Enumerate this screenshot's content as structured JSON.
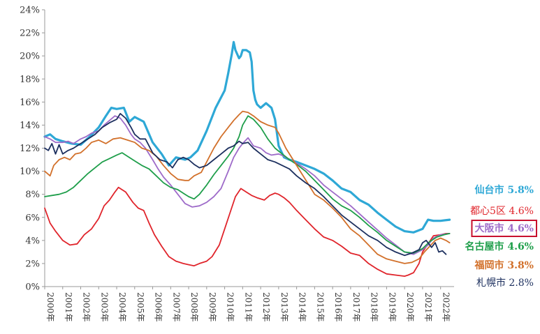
{
  "chart_data": {
    "type": "line",
    "title": "",
    "xlabel": "",
    "ylabel": "",
    "ylim": [
      0,
      24
    ],
    "y_ticks": [
      0,
      2,
      4,
      6,
      8,
      10,
      12,
      14,
      16,
      18,
      20,
      22,
      24
    ],
    "y_tick_suffix": "%",
    "x_range": [
      2000.0,
      2022.75
    ],
    "x_ticks": [
      {
        "value": 2000,
        "label": "2000年"
      },
      {
        "value": 2001,
        "label": "2001年"
      },
      {
        "value": 2002,
        "label": "2002年"
      },
      {
        "value": 2003,
        "label": "2003年"
      },
      {
        "value": 2004,
        "label": "2004年"
      },
      {
        "value": 2005,
        "label": "2005年"
      },
      {
        "value": 2006,
        "label": "2006年"
      },
      {
        "value": 2007,
        "label": "2007年"
      },
      {
        "value": 2008,
        "label": "2008年"
      },
      {
        "value": 2009,
        "label": "2009年"
      },
      {
        "value": 2010,
        "label": "2010年"
      },
      {
        "value": 2011,
        "label": "2011年"
      },
      {
        "value": 2012,
        "label": "2012年"
      },
      {
        "value": 2013,
        "label": "2013年"
      },
      {
        "value": 2014,
        "label": "2014年"
      },
      {
        "value": 2015,
        "label": "2015年"
      },
      {
        "value": 2016,
        "label": "2016年"
      },
      {
        "value": 2017,
        "label": "2017年"
      },
      {
        "value": 2018,
        "label": "2018年"
      },
      {
        "value": 2019,
        "label": "2019年"
      },
      {
        "value": 2020,
        "label": "2020年"
      },
      {
        "value": 2021,
        "label": "2021年"
      },
      {
        "value": 2022,
        "label": "2022年"
      }
    ],
    "grid": false,
    "legend_position": "right",
    "series": [
      {
        "name": "仙台市",
        "legend_label": "仙台市 5.8%",
        "final_value": "5.8%",
        "color": "#2EA8D6",
        "width": 3.2,
        "bold": true,
        "boxed": false,
        "x": [
          2000.0,
          2000.3,
          2000.6,
          2001.0,
          2001.5,
          2002.0,
          2002.5,
          2003.0,
          2003.4,
          2003.7,
          2004.0,
          2004.4,
          2004.7,
          2005.0,
          2005.5,
          2006.0,
          2006.5,
          2006.9,
          2007.3,
          2007.8,
          2008.1,
          2008.5,
          2009.0,
          2009.5,
          2010.0,
          2010.2,
          2010.4,
          2010.5,
          2010.6,
          2010.8,
          2010.9,
          2011.0,
          2011.2,
          2011.4,
          2011.5,
          2011.6,
          2011.7,
          2011.8,
          2012.0,
          2012.3,
          2012.6,
          2012.8,
          2013.0,
          2013.3,
          2013.6,
          2014.0,
          2014.5,
          2015.0,
          2015.5,
          2016.0,
          2016.5,
          2017.0,
          2017.5,
          2018.0,
          2018.5,
          2019.0,
          2019.5,
          2020.0,
          2020.5,
          2021.0,
          2021.3,
          2021.6,
          2022.0,
          2022.5
        ],
        "values": [
          13.0,
          13.2,
          12.8,
          12.6,
          12.4,
          12.3,
          13.0,
          13.8,
          14.8,
          15.5,
          15.4,
          15.5,
          14.3,
          14.7,
          14.3,
          12.5,
          11.5,
          10.5,
          11.2,
          11.0,
          11.2,
          11.8,
          13.5,
          15.5,
          17.0,
          18.5,
          20.2,
          21.2,
          20.5,
          19.8,
          20.0,
          20.5,
          20.5,
          20.3,
          19.5,
          17.0,
          16.2,
          15.8,
          15.5,
          15.9,
          15.5,
          14.5,
          12.2,
          11.2,
          11.0,
          10.8,
          10.5,
          10.2,
          9.8,
          9.2,
          8.5,
          8.2,
          7.5,
          7.1,
          6.4,
          5.8,
          5.2,
          4.8,
          4.7,
          5.0,
          5.8,
          5.7,
          5.7,
          5.8
        ]
      },
      {
        "name": "都心5区",
        "legend_label": "都心5区 4.6%",
        "final_value": "4.6%",
        "color": "#E0242B",
        "width": 1.8,
        "bold": false,
        "boxed": false,
        "x": [
          2000.0,
          2000.3,
          2000.6,
          2001.0,
          2001.4,
          2001.8,
          2002.2,
          2002.6,
          2003.0,
          2003.3,
          2003.6,
          2003.9,
          2004.1,
          2004.5,
          2004.9,
          2005.2,
          2005.5,
          2005.8,
          2006.1,
          2006.5,
          2006.9,
          2007.3,
          2007.7,
          2008.0,
          2008.3,
          2008.6,
          2009.0,
          2009.3,
          2009.7,
          2010.0,
          2010.3,
          2010.6,
          2010.9,
          2011.2,
          2011.5,
          2011.8,
          2012.2,
          2012.5,
          2012.8,
          2013.0,
          2013.3,
          2013.6,
          2014.0,
          2014.5,
          2015.0,
          2015.5,
          2016.0,
          2016.5,
          2017.0,
          2017.5,
          2018.0,
          2018.5,
          2019.0,
          2019.5,
          2020.0,
          2020.2,
          2020.5,
          2020.8,
          2021.0,
          2021.3,
          2021.6,
          2022.0,
          2022.3,
          2022.5
        ],
        "values": [
          6.8,
          5.5,
          4.8,
          4.0,
          3.6,
          3.7,
          4.5,
          5.0,
          5.9,
          7.0,
          7.5,
          8.2,
          8.6,
          8.2,
          7.3,
          6.8,
          6.6,
          5.5,
          4.5,
          3.5,
          2.6,
          2.2,
          2.0,
          1.9,
          1.8,
          2.0,
          2.2,
          2.6,
          3.6,
          5.0,
          6.4,
          7.8,
          8.5,
          8.2,
          7.9,
          7.7,
          7.5,
          7.9,
          8.1,
          8.0,
          7.7,
          7.3,
          6.6,
          5.8,
          5.0,
          4.3,
          4.0,
          3.5,
          2.9,
          2.7,
          2.0,
          1.5,
          1.1,
          1.0,
          0.9,
          1.0,
          1.2,
          2.0,
          3.0,
          3.7,
          4.4,
          4.5,
          4.6,
          4.6
        ]
      },
      {
        "name": "大阪市",
        "legend_label": "大阪市 4.6%",
        "final_value": "4.6%",
        "color": "#9E6BC9",
        "width": 1.8,
        "bold": true,
        "boxed": true,
        "x": [
          2000.0,
          2000.3,
          2000.6,
          2001.0,
          2001.3,
          2001.6,
          2002.0,
          2002.3,
          2002.6,
          2003.0,
          2003.3,
          2003.6,
          2003.9,
          2004.2,
          2004.5,
          2004.8,
          2005.0,
          2005.3,
          2005.6,
          2006.0,
          2006.3,
          2006.6,
          2007.0,
          2007.4,
          2007.8,
          2008.2,
          2008.6,
          2009.0,
          2009.4,
          2009.8,
          2010.2,
          2010.5,
          2010.8,
          2011.0,
          2011.3,
          2011.6,
          2012.0,
          2012.3,
          2012.6,
          2013.0,
          2013.3,
          2013.6,
          2014.0,
          2014.5,
          2015.0,
          2015.5,
          2016.0,
          2016.5,
          2017.0,
          2017.5,
          2018.0,
          2018.5,
          2019.0,
          2019.5,
          2020.0,
          2020.5,
          2021.0,
          2021.3,
          2021.6,
          2022.0,
          2022.5
        ],
        "values": [
          13.0,
          12.8,
          12.5,
          12.5,
          12.6,
          12.4,
          12.8,
          13.0,
          13.3,
          13.5,
          14.0,
          14.4,
          14.8,
          14.6,
          14.0,
          13.2,
          12.8,
          12.5,
          12.0,
          11.0,
          10.2,
          9.5,
          8.8,
          8.0,
          7.2,
          6.9,
          7.0,
          7.3,
          7.8,
          8.5,
          10.0,
          11.2,
          12.0,
          12.4,
          12.9,
          12.2,
          12.0,
          11.6,
          11.4,
          11.5,
          11.3,
          11.0,
          10.7,
          10.2,
          9.6,
          8.8,
          8.2,
          7.6,
          7.0,
          6.3,
          5.6,
          4.9,
          4.2,
          3.6,
          3.0,
          2.8,
          3.2,
          3.6,
          4.2,
          4.5,
          4.6
        ]
      },
      {
        "name": "名古屋市",
        "legend_label": "名古屋市 4.6%",
        "final_value": "4.6%",
        "color": "#1E9E4A",
        "width": 1.8,
        "bold": true,
        "boxed": false,
        "x": [
          2000.0,
          2000.4,
          2000.8,
          2001.2,
          2001.6,
          2002.0,
          2002.4,
          2002.8,
          2003.2,
          2003.6,
          2004.0,
          2004.3,
          2004.6,
          2005.0,
          2005.4,
          2005.8,
          2006.2,
          2006.6,
          2007.0,
          2007.4,
          2007.8,
          2008.0,
          2008.3,
          2008.6,
          2009.0,
          2009.4,
          2009.8,
          2010.2,
          2010.5,
          2010.8,
          2011.0,
          2011.3,
          2011.6,
          2012.0,
          2012.4,
          2012.8,
          2013.2,
          2013.6,
          2014.0,
          2014.5,
          2015.0,
          2015.5,
          2016.0,
          2016.5,
          2017.0,
          2017.5,
          2018.0,
          2018.5,
          2019.0,
          2019.5,
          2020.0,
          2020.5,
          2021.0,
          2021.4,
          2021.8,
          2022.2,
          2022.5
        ],
        "values": [
          7.8,
          7.9,
          8.0,
          8.2,
          8.6,
          9.2,
          9.8,
          10.3,
          10.8,
          11.1,
          11.4,
          11.6,
          11.3,
          10.9,
          10.5,
          10.2,
          9.6,
          9.0,
          8.6,
          8.4,
          8.0,
          7.8,
          7.6,
          8.0,
          8.8,
          9.7,
          10.5,
          11.3,
          12.0,
          13.0,
          14.0,
          14.8,
          14.5,
          13.8,
          12.8,
          12.0,
          11.5,
          11.0,
          10.6,
          10.0,
          9.2,
          8.4,
          7.6,
          7.0,
          6.6,
          6.0,
          5.3,
          4.7,
          4.0,
          3.5,
          3.0,
          2.9,
          3.3,
          3.9,
          4.3,
          4.5,
          4.6
        ]
      },
      {
        "name": "福岡市",
        "legend_label": "福岡市 3.8%",
        "final_value": "3.8%",
        "color": "#D2702A",
        "width": 1.8,
        "bold": true,
        "boxed": false,
        "x": [
          2000.0,
          2000.3,
          2000.5,
          2000.8,
          2001.1,
          2001.4,
          2001.7,
          2002.0,
          2002.3,
          2002.6,
          2003.0,
          2003.4,
          2003.8,
          2004.2,
          2004.6,
          2005.0,
          2005.4,
          2005.8,
          2006.2,
          2006.6,
          2007.0,
          2007.4,
          2007.8,
          2008.0,
          2008.3,
          2008.7,
          2009.0,
          2009.4,
          2009.8,
          2010.2,
          2010.5,
          2010.8,
          2011.0,
          2011.3,
          2011.6,
          2012.0,
          2012.4,
          2012.8,
          2013.0,
          2013.4,
          2013.8,
          2014.2,
          2014.6,
          2015.0,
          2015.5,
          2016.0,
          2016.5,
          2017.0,
          2017.5,
          2018.0,
          2018.5,
          2019.0,
          2019.5,
          2020.0,
          2020.4,
          2020.8,
          2021.1,
          2021.4,
          2021.7,
          2022.0,
          2022.3,
          2022.5
        ],
        "values": [
          10.0,
          9.6,
          10.5,
          11.0,
          11.2,
          11.0,
          11.5,
          11.6,
          12.0,
          12.5,
          12.7,
          12.4,
          12.8,
          12.9,
          12.7,
          12.5,
          12.0,
          11.8,
          11.3,
          10.5,
          9.8,
          9.3,
          9.2,
          9.2,
          9.6,
          9.9,
          10.8,
          12.0,
          13.0,
          13.8,
          14.4,
          14.9,
          15.2,
          15.1,
          14.8,
          14.3,
          14.0,
          13.8,
          13.3,
          12.0,
          11.0,
          10.0,
          9.0,
          8.0,
          7.5,
          6.8,
          6.0,
          5.0,
          4.4,
          3.6,
          2.8,
          2.4,
          2.2,
          2.0,
          2.1,
          2.4,
          3.0,
          3.5,
          4.0,
          4.2,
          4.0,
          3.8
        ]
      },
      {
        "name": "札幌市",
        "legend_label": "札幌市 2.8%",
        "final_value": "2.8%",
        "color": "#1C2F5E",
        "width": 1.8,
        "bold": false,
        "boxed": false,
        "x": [
          2000.0,
          2000.2,
          2000.4,
          2000.6,
          2000.8,
          2001.0,
          2001.3,
          2001.6,
          2002.0,
          2002.4,
          2002.8,
          2003.2,
          2003.6,
          2004.0,
          2004.2,
          2004.5,
          2004.8,
          2005.0,
          2005.3,
          2005.6,
          2006.0,
          2006.4,
          2006.8,
          2007.1,
          2007.4,
          2007.7,
          2008.0,
          2008.3,
          2008.6,
          2009.0,
          2009.4,
          2009.8,
          2010.2,
          2010.5,
          2010.8,
          2011.0,
          2011.3,
          2011.6,
          2012.0,
          2012.4,
          2012.8,
          2013.2,
          2013.6,
          2014.0,
          2014.5,
          2015.0,
          2015.5,
          2016.0,
          2016.5,
          2017.0,
          2017.5,
          2018.0,
          2018.5,
          2019.0,
          2019.5,
          2020.0,
          2020.4,
          2020.8,
          2021.0,
          2021.2,
          2021.5,
          2021.7,
          2021.9,
          2022.1,
          2022.3
        ],
        "values": [
          12.0,
          11.8,
          12.4,
          11.5,
          12.3,
          11.5,
          11.8,
          12.0,
          12.4,
          12.8,
          13.2,
          13.8,
          14.2,
          14.5,
          15.0,
          14.6,
          13.8,
          13.2,
          12.8,
          12.8,
          11.6,
          11.0,
          10.8,
          10.3,
          11.0,
          11.2,
          11.0,
          10.6,
          10.3,
          10.5,
          11.0,
          11.5,
          12.0,
          12.2,
          12.6,
          12.4,
          12.5,
          12.0,
          11.5,
          11.0,
          10.8,
          10.5,
          10.2,
          9.6,
          9.0,
          8.5,
          7.8,
          7.0,
          6.2,
          5.6,
          5.0,
          4.4,
          4.0,
          3.4,
          3.0,
          2.7,
          2.9,
          3.2,
          3.8,
          4.0,
          3.4,
          3.8,
          3.0,
          3.1,
          2.8
        ]
      }
    ]
  }
}
